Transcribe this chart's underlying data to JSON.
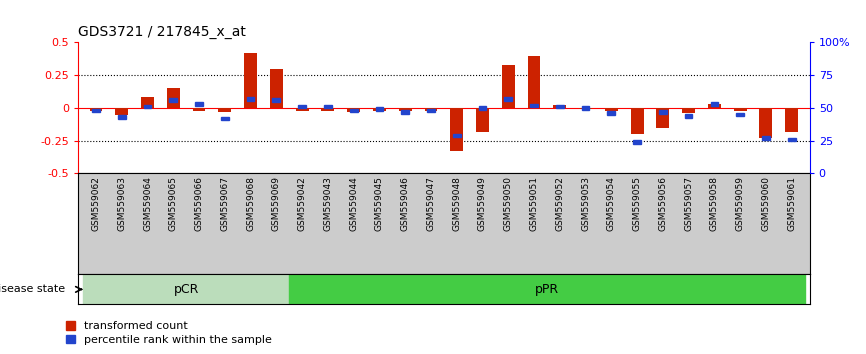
{
  "title": "GDS3721 / 217845_x_at",
  "samples": [
    "GSM559062",
    "GSM559063",
    "GSM559064",
    "GSM559065",
    "GSM559066",
    "GSM559067",
    "GSM559068",
    "GSM559069",
    "GSM559042",
    "GSM559043",
    "GSM559044",
    "GSM559045",
    "GSM559046",
    "GSM559047",
    "GSM559048",
    "GSM559049",
    "GSM559050",
    "GSM559051",
    "GSM559052",
    "GSM559053",
    "GSM559054",
    "GSM559055",
    "GSM559056",
    "GSM559057",
    "GSM559058",
    "GSM559059",
    "GSM559060",
    "GSM559061"
  ],
  "red_values": [
    -0.02,
    -0.05,
    0.08,
    0.15,
    -0.02,
    -0.03,
    0.42,
    0.3,
    -0.02,
    -0.02,
    -0.03,
    -0.02,
    -0.02,
    -0.02,
    -0.33,
    -0.18,
    0.33,
    0.4,
    0.02,
    -0.01,
    -0.02,
    -0.2,
    -0.15,
    -0.04,
    0.03,
    -0.02,
    -0.23,
    -0.18
  ],
  "blue_values": [
    48,
    43,
    51,
    56,
    53,
    42,
    57,
    56,
    51,
    51,
    48,
    49,
    47,
    48,
    29,
    50,
    57,
    52,
    51,
    50,
    46,
    24,
    47,
    44,
    53,
    45,
    27,
    26
  ],
  "pCR_count": 8,
  "ylim_left": [
    -0.5,
    0.5
  ],
  "ylim_right": [
    0,
    100
  ],
  "yticks_left": [
    -0.5,
    -0.25,
    0.0,
    0.25,
    0.5
  ],
  "ytick_labels_left": [
    "-0.5",
    "-0.25",
    "0",
    "0.25",
    "0.5"
  ],
  "yticks_right": [
    0,
    25,
    50,
    75,
    100
  ],
  "ytick_labels_right": [
    "0",
    "25",
    "50",
    "75",
    "100%"
  ],
  "bar_color": "#cc2200",
  "blue_color": "#2244cc",
  "pCR_color": "#bbddbb",
  "pPR_color": "#44cc44",
  "bg_color": "#cccccc",
  "legend_red": "transformed count",
  "legend_blue": "percentile rank within the sample",
  "disease_state_label": "disease state",
  "pCR_label": "pCR",
  "pPR_label": "pPR"
}
